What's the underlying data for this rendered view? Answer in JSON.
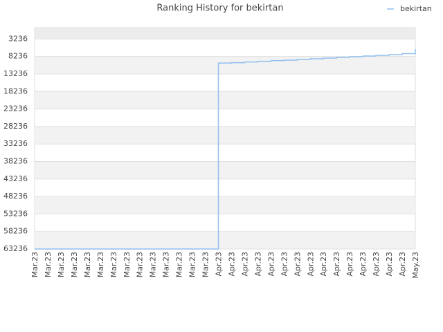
{
  "chart_data": {
    "type": "line",
    "title": "Ranking History for bekirtan",
    "categories": [
      "Mar.23",
      "Mar.23",
      "Mar.23",
      "Mar.23",
      "Mar.23",
      "Mar.23",
      "Mar.23",
      "Mar.23",
      "Mar.23",
      "Mar.23",
      "Mar.23",
      "Mar.23",
      "Mar.23",
      "Mar.23",
      "Apr.23",
      "Apr.23",
      "Apr.23",
      "Apr.23",
      "Apr.23",
      "Apr.23",
      "Apr.23",
      "Apr.23",
      "Apr.23",
      "Apr.23",
      "Apr.23",
      "Apr.23",
      "Apr.23",
      "Apr.23",
      "Apr.23",
      "May.23"
    ],
    "series": [
      {
        "name": "bekirtan",
        "color": "#90c0ee",
        "values": [
          63236,
          63236,
          63236,
          63236,
          63236,
          63236,
          63236,
          63236,
          63236,
          63236,
          63236,
          63236,
          63236,
          63236,
          10100,
          10000,
          9800,
          9600,
          9400,
          9300,
          9100,
          8900,
          8700,
          8500,
          8300,
          8100,
          7900,
          7700,
          7400,
          6100
        ]
      }
    ],
    "ylim": [
      0,
      63236
    ],
    "y_reversed": true,
    "yticks": [
      3236,
      8236,
      13236,
      18236,
      23236,
      28236,
      33236,
      38236,
      43236,
      48236,
      53236,
      58236,
      63236
    ],
    "grid": true,
    "legend": "top-right"
  }
}
